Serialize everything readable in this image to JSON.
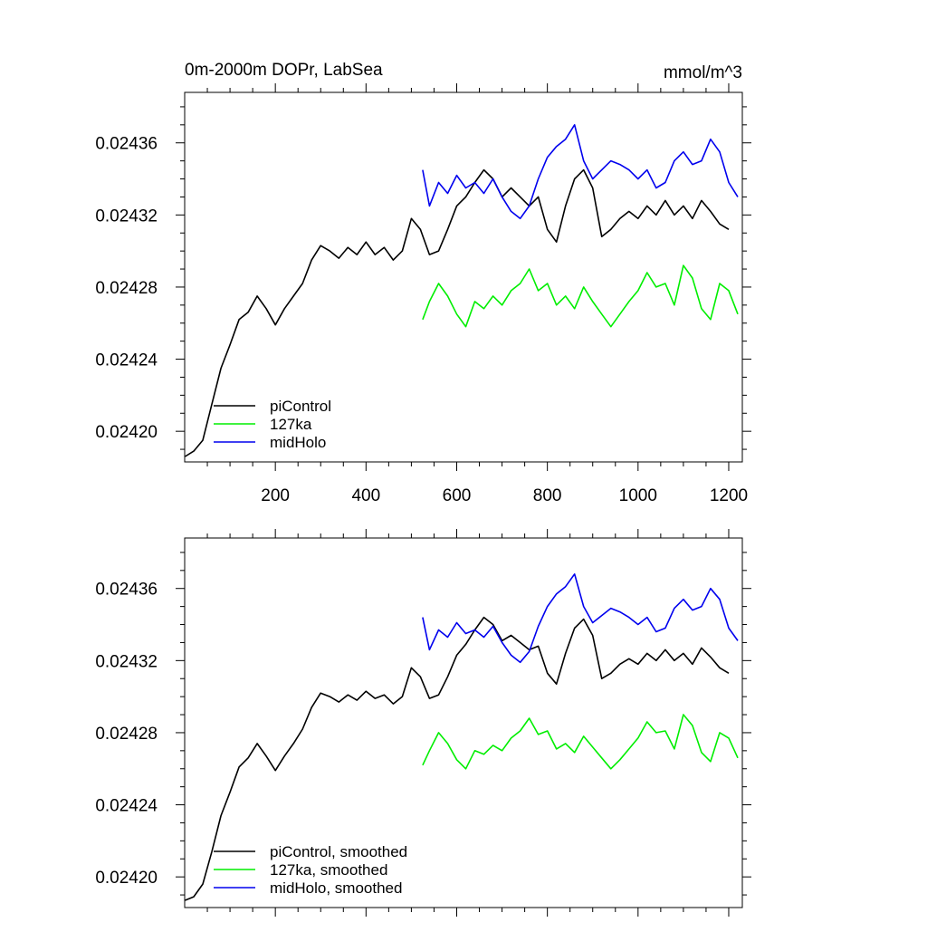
{
  "chart_data": [
    {
      "type": "line",
      "title_left": "0m-2000m DOPr, LabSea",
      "title_right": "mmol/m^3",
      "xlim": [
        0,
        1230
      ],
      "ylim": [
        0.024183,
        0.024388
      ],
      "xticks": [
        200,
        400,
        600,
        800,
        1000,
        1200
      ],
      "xtick_labels": [
        "200",
        "400",
        "600",
        "800",
        "1000",
        "1200"
      ],
      "yticks": [
        0.0242,
        0.02424,
        0.02428,
        0.02432,
        0.02436
      ],
      "ytick_labels": [
        "0.02420",
        "0.02424",
        "0.02428",
        "0.02432",
        "0.02436"
      ],
      "legend_position": "bottom-left",
      "series": [
        {
          "name": "piControl",
          "color": "#000000",
          "x": [
            1,
            20,
            40,
            60,
            80,
            100,
            120,
            140,
            160,
            180,
            200,
            220,
            240,
            260,
            280,
            300,
            320,
            340,
            360,
            380,
            400,
            420,
            440,
            460,
            480,
            500,
            520,
            540,
            560,
            580,
            600,
            620,
            640,
            660,
            680,
            700,
            720,
            740,
            760,
            780,
            800,
            820,
            840,
            860,
            880,
            900,
            920,
            940,
            960,
            980,
            1000,
            1020,
            1040,
            1060,
            1080,
            1100,
            1120,
            1140,
            1160,
            1180,
            1200
          ],
          "y": [
            0.024186,
            0.024189,
            0.024195,
            0.024215,
            0.024235,
            0.024248,
            0.024262,
            0.024266,
            0.024275,
            0.024268,
            0.024259,
            0.024268,
            0.024275,
            0.024282,
            0.024295,
            0.024303,
            0.0243,
            0.024296,
            0.024302,
            0.024298,
            0.024305,
            0.024298,
            0.024302,
            0.024295,
            0.0243,
            0.024318,
            0.024312,
            0.024298,
            0.0243,
            0.024312,
            0.024325,
            0.02433,
            0.024338,
            0.024345,
            0.02434,
            0.02433,
            0.024335,
            0.02433,
            0.024325,
            0.02433,
            0.024312,
            0.024305,
            0.024325,
            0.02434,
            0.024345,
            0.024335,
            0.024308,
            0.024312,
            0.024318,
            0.024322,
            0.024318,
            0.024325,
            0.02432,
            0.024328,
            0.02432,
            0.024325,
            0.024318,
            0.024328,
            0.024322,
            0.024315,
            0.024312
          ]
        },
        {
          "name": "127ka",
          "color": "#00ee00",
          "x": [
            525,
            540,
            560,
            580,
            600,
            620,
            640,
            660,
            680,
            700,
            720,
            740,
            760,
            780,
            800,
            820,
            840,
            860,
            880,
            900,
            920,
            940,
            960,
            980,
            1000,
            1020,
            1040,
            1060,
            1080,
            1100,
            1120,
            1140,
            1160,
            1180,
            1200,
            1220
          ],
          "y": [
            0.024262,
            0.024272,
            0.024282,
            0.024275,
            0.024265,
            0.024258,
            0.024272,
            0.024268,
            0.024275,
            0.02427,
            0.024278,
            0.024282,
            0.02429,
            0.024278,
            0.024282,
            0.02427,
            0.024275,
            0.024268,
            0.02428,
            0.024272,
            0.024265,
            0.024258,
            0.024265,
            0.024272,
            0.024278,
            0.024288,
            0.02428,
            0.024282,
            0.02427,
            0.024292,
            0.024285,
            0.024268,
            0.024262,
            0.024282,
            0.024278,
            0.024265
          ]
        },
        {
          "name": "midHolo",
          "color": "#0000ee",
          "x": [
            525,
            540,
            560,
            580,
            600,
            620,
            640,
            660,
            680,
            700,
            720,
            740,
            760,
            780,
            800,
            820,
            840,
            860,
            880,
            900,
            920,
            940,
            960,
            980,
            1000,
            1020,
            1040,
            1060,
            1080,
            1100,
            1120,
            1140,
            1160,
            1180,
            1200,
            1220
          ],
          "y": [
            0.024345,
            0.024325,
            0.024338,
            0.024332,
            0.024342,
            0.024335,
            0.024338,
            0.024332,
            0.02434,
            0.02433,
            0.024322,
            0.024318,
            0.024325,
            0.02434,
            0.024352,
            0.024358,
            0.024362,
            0.02437,
            0.02435,
            0.02434,
            0.024345,
            0.02435,
            0.024348,
            0.024345,
            0.02434,
            0.024345,
            0.024335,
            0.024338,
            0.02435,
            0.024355,
            0.024348,
            0.02435,
            0.024362,
            0.024355,
            0.024338,
            0.02433
          ]
        }
      ]
    },
    {
      "type": "line",
      "xlim": [
        0,
        1230
      ],
      "ylim": [
        0.024183,
        0.024388
      ],
      "xticks": [
        200,
        400,
        600,
        800,
        1000,
        1200
      ],
      "yticks": [
        0.0242,
        0.02424,
        0.02428,
        0.02432,
        0.02436
      ],
      "ytick_labels": [
        "0.02420",
        "0.02424",
        "0.02428",
        "0.02432",
        "0.02436"
      ],
      "legend_position": "bottom-left",
      "series": [
        {
          "name": "piControl, smoothed",
          "color": "#000000",
          "x": [
            1,
            20,
            40,
            60,
            80,
            100,
            120,
            140,
            160,
            180,
            200,
            220,
            240,
            260,
            280,
            300,
            320,
            340,
            360,
            380,
            400,
            420,
            440,
            460,
            480,
            500,
            520,
            540,
            560,
            580,
            600,
            620,
            640,
            660,
            680,
            700,
            720,
            740,
            760,
            780,
            800,
            820,
            840,
            860,
            880,
            900,
            920,
            940,
            960,
            980,
            1000,
            1020,
            1040,
            1060,
            1080,
            1100,
            1120,
            1140,
            1160,
            1180,
            1200
          ],
          "y": [
            0.024187,
            0.024189,
            0.024196,
            0.024214,
            0.024234,
            0.024247,
            0.024261,
            0.024266,
            0.024274,
            0.024267,
            0.024259,
            0.024267,
            0.024274,
            0.024282,
            0.024294,
            0.024302,
            0.0243,
            0.024297,
            0.024301,
            0.024298,
            0.024303,
            0.024299,
            0.024301,
            0.024296,
            0.0243,
            0.024316,
            0.024311,
            0.024299,
            0.024301,
            0.024311,
            0.024323,
            0.024329,
            0.024337,
            0.024344,
            0.02434,
            0.024331,
            0.024334,
            0.02433,
            0.024326,
            0.024328,
            0.024313,
            0.024307,
            0.024324,
            0.024338,
            0.024343,
            0.024334,
            0.02431,
            0.024313,
            0.024318,
            0.024321,
            0.024318,
            0.024324,
            0.02432,
            0.024326,
            0.02432,
            0.024324,
            0.024318,
            0.024327,
            0.024322,
            0.024316,
            0.024313
          ]
        },
        {
          "name": "127ka, smoothed",
          "color": "#00ee00",
          "x": [
            525,
            540,
            560,
            580,
            600,
            620,
            640,
            660,
            680,
            700,
            720,
            740,
            760,
            780,
            800,
            820,
            840,
            860,
            880,
            900,
            920,
            940,
            960,
            980,
            1000,
            1020,
            1040,
            1060,
            1080,
            1100,
            1120,
            1140,
            1160,
            1180,
            1200,
            1220
          ],
          "y": [
            0.024262,
            0.02427,
            0.02428,
            0.024274,
            0.024265,
            0.02426,
            0.02427,
            0.024268,
            0.024273,
            0.02427,
            0.024277,
            0.024281,
            0.024288,
            0.024279,
            0.024281,
            0.024271,
            0.024274,
            0.024269,
            0.024278,
            0.024272,
            0.024266,
            0.02426,
            0.024265,
            0.024271,
            0.024277,
            0.024286,
            0.02428,
            0.024281,
            0.024271,
            0.02429,
            0.024284,
            0.024269,
            0.024264,
            0.02428,
            0.024277,
            0.024266
          ]
        },
        {
          "name": "midHolo, smoothed",
          "color": "#0000ee",
          "x": [
            525,
            540,
            560,
            580,
            600,
            620,
            640,
            660,
            680,
            700,
            720,
            740,
            760,
            780,
            800,
            820,
            840,
            860,
            880,
            900,
            920,
            940,
            960,
            980,
            1000,
            1020,
            1040,
            1060,
            1080,
            1100,
            1120,
            1140,
            1160,
            1180,
            1200,
            1220
          ],
          "y": [
            0.024344,
            0.024326,
            0.024337,
            0.024333,
            0.024341,
            0.024335,
            0.024337,
            0.024333,
            0.024339,
            0.02433,
            0.024323,
            0.024319,
            0.024325,
            0.024339,
            0.02435,
            0.024357,
            0.024361,
            0.024368,
            0.02435,
            0.024341,
            0.024345,
            0.024349,
            0.024347,
            0.024344,
            0.02434,
            0.024344,
            0.024336,
            0.024338,
            0.024349,
            0.024354,
            0.024348,
            0.02435,
            0.02436,
            0.024354,
            0.024338,
            0.024331
          ]
        }
      ]
    }
  ]
}
